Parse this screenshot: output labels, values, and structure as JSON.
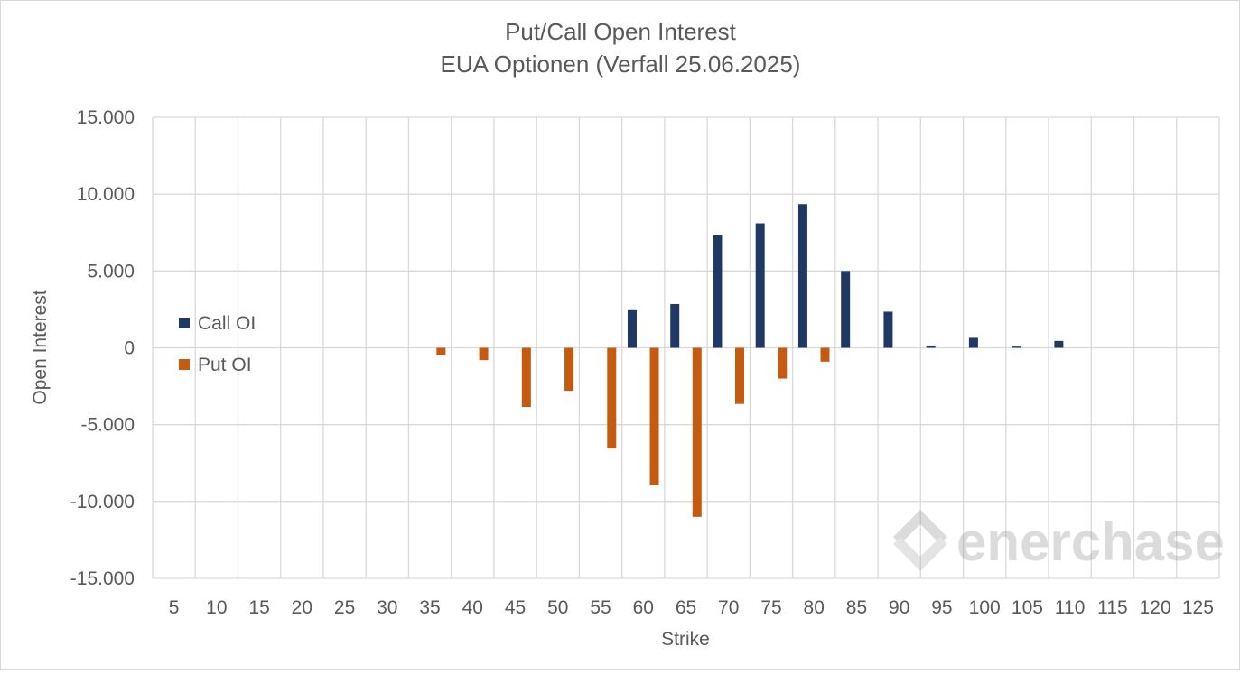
{
  "chart_data": {
    "type": "bar",
    "title": "Put/Call Open Interest",
    "subtitle": "EUA Optionen (Verfall 25.06.2025)",
    "xlabel": "Strike",
    "ylabel": "Open Interest",
    "ylim": [
      -15000,
      15000
    ],
    "yticks": [
      15000,
      10000,
      5000,
      0,
      -5000,
      -10000,
      -15000
    ],
    "ytick_labels": [
      "15.000",
      "10.000",
      "5.000",
      "0",
      "-5.000",
      "-10.000",
      "-15.000"
    ],
    "grid": true,
    "legend_position": "left",
    "categories": [
      "5",
      "10",
      "15",
      "20",
      "25",
      "30",
      "35",
      "40",
      "45",
      "50",
      "55",
      "60",
      "65",
      "70",
      "75",
      "80",
      "85",
      "90",
      "95",
      "100",
      "105",
      "110",
      "115",
      "120",
      "125"
    ],
    "series": [
      {
        "name": "Call OI",
        "color": "#1f3864",
        "values": [
          0,
          0,
          0,
          0,
          0,
          0,
          0,
          0,
          0,
          0,
          0,
          2450,
          2850,
          7350,
          8100,
          9350,
          5000,
          2350,
          150,
          650,
          80,
          450,
          0,
          0,
          0
        ]
      },
      {
        "name": "Put OI",
        "color": "#c55a11",
        "values": [
          0,
          0,
          0,
          0,
          0,
          0,
          -500,
          -800,
          -3850,
          -2800,
          -6550,
          -8950,
          -11000,
          -3650,
          -2000,
          -900,
          0,
          0,
          0,
          0,
          0,
          0,
          0,
          0,
          0
        ]
      }
    ]
  },
  "watermark": {
    "text": "enerchase"
  }
}
